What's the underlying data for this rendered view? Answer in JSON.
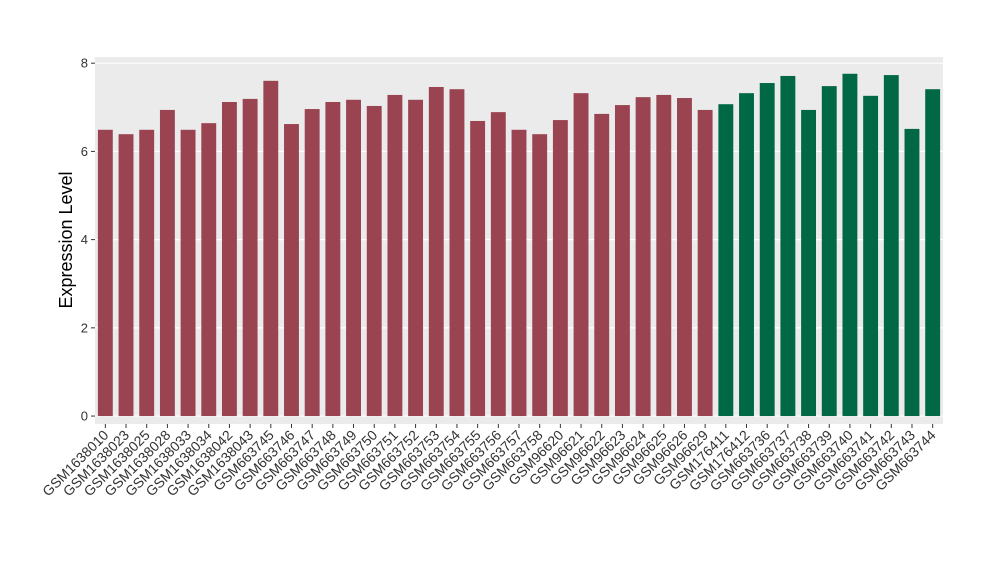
{
  "chart_data": {
    "type": "bar",
    "y_label": "Expression Level",
    "categories": [
      "GSM1638010",
      "GSM1638023",
      "GSM1638025",
      "GSM1638028",
      "GSM1638033",
      "GSM1638034",
      "GSM1638042",
      "GSM1638043",
      "GSM663745",
      "GSM663746",
      "GSM663747",
      "GSM663748",
      "GSM663749",
      "GSM663750",
      "GSM663751",
      "GSM663752",
      "GSM663753",
      "GSM663754",
      "GSM663755",
      "GSM663756",
      "GSM663757",
      "GSM663758",
      "GSM96620",
      "GSM96621",
      "GSM96622",
      "GSM96623",
      "GSM96624",
      "GSM96625",
      "GSM96626",
      "GSM96629",
      "GSM176411",
      "GSM176412",
      "GSM663736",
      "GSM663737",
      "GSM663738",
      "GSM663739",
      "GSM663740",
      "GSM663741",
      "GSM663742",
      "GSM663743",
      "GSM663744"
    ],
    "values": [
      6.49,
      6.39,
      6.49,
      6.94,
      6.49,
      6.64,
      7.12,
      7.19,
      7.6,
      6.62,
      6.96,
      7.12,
      7.17,
      7.03,
      7.28,
      7.17,
      7.46,
      7.41,
      6.69,
      6.89,
      6.49,
      6.39,
      6.71,
      7.32,
      6.85,
      7.05,
      7.23,
      7.28,
      7.21,
      6.94,
      7.07,
      7.32,
      7.55,
      7.71,
      6.94,
      7.48,
      7.76,
      7.26,
      7.73,
      6.51,
      7.41
    ],
    "colors": [
      "#994450",
      "#994450",
      "#994450",
      "#994450",
      "#994450",
      "#994450",
      "#994450",
      "#994450",
      "#994450",
      "#994450",
      "#994450",
      "#994450",
      "#994450",
      "#994450",
      "#994450",
      "#994450",
      "#994450",
      "#994450",
      "#994450",
      "#994450",
      "#994450",
      "#994450",
      "#994450",
      "#994450",
      "#994450",
      "#994450",
      "#994450",
      "#994450",
      "#994450",
      "#994450",
      "#006845",
      "#006845",
      "#006845",
      "#006845",
      "#006845",
      "#006845",
      "#006845",
      "#006845",
      "#006845",
      "#006845",
      "#006845"
    ],
    "ylim": [
      -0.18,
      8.14
    ],
    "yticks": [
      0,
      2,
      4,
      6,
      8
    ],
    "grid": true
  }
}
